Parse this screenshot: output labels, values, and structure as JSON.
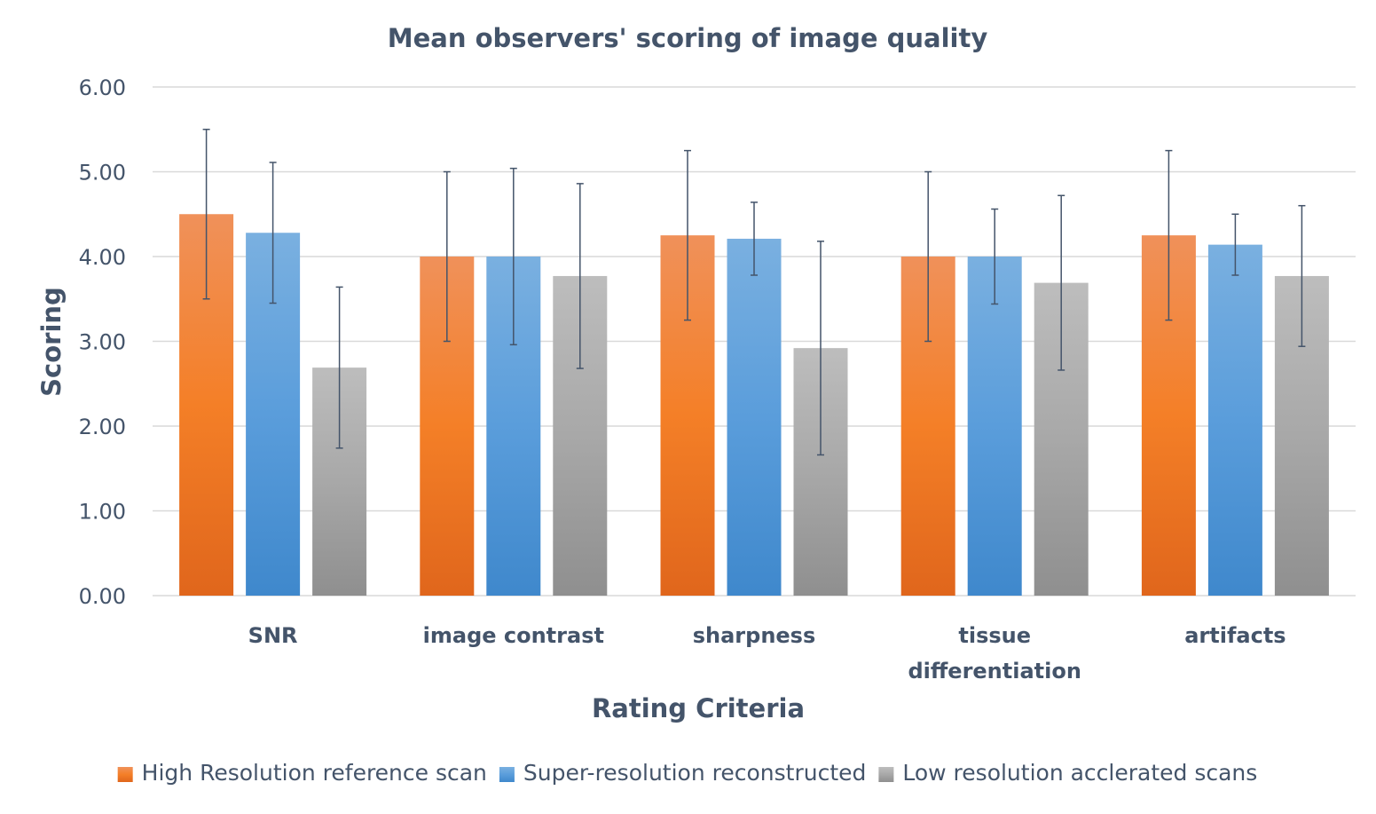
{
  "chart_data": {
    "type": "bar",
    "title": "Mean observers' scoring of image quality",
    "xlabel": "Rating Criteria",
    "ylabel": "Scoring",
    "ylim": [
      0,
      6
    ],
    "yticks": [
      "0.00",
      "1.00",
      "2.00",
      "3.00",
      "4.00",
      "5.00",
      "6.00"
    ],
    "grid": true,
    "legend_position": "bottom",
    "categories": [
      [
        "SNR"
      ],
      [
        "image contrast"
      ],
      [
        "sharpness"
      ],
      [
        "tissue",
        "differentiation"
      ],
      [
        "artifacts"
      ]
    ],
    "series": [
      {
        "name": "High Resolution reference scan",
        "color": "#ed7d31",
        "gradient_top": "#f0915a",
        "gradient_mid": "#f47f27",
        "gradient_bottom": "#e0661c",
        "values": [
          4.5,
          4.0,
          4.25,
          4.0,
          4.25
        ],
        "errors": [
          1.0,
          1.0,
          1.0,
          1.0,
          1.0
        ]
      },
      {
        "name": "Super-resolution reconstructed",
        "color": "#5b9bd5",
        "gradient_top": "#7ab0e0",
        "gradient_mid": "#5a9ddb",
        "gradient_bottom": "#3f88cc",
        "values": [
          4.28,
          4.0,
          4.21,
          4.0,
          4.14
        ],
        "errors": [
          0.83,
          1.04,
          0.43,
          0.56,
          0.36
        ]
      },
      {
        "name": "Low resolution acclerated scans",
        "color": "#a5a5a5",
        "gradient_top": "#bdbdbd",
        "gradient_mid": "#a8a8a8",
        "gradient_bottom": "#8f8f8f",
        "values": [
          2.69,
          3.77,
          2.92,
          3.69,
          3.77
        ],
        "errors": [
          0.95,
          1.09,
          1.26,
          1.03,
          0.83
        ]
      }
    ],
    "error_bar_color": "#44546a",
    "text_color": "#44546a",
    "grid_color": "#d9d9d9"
  }
}
